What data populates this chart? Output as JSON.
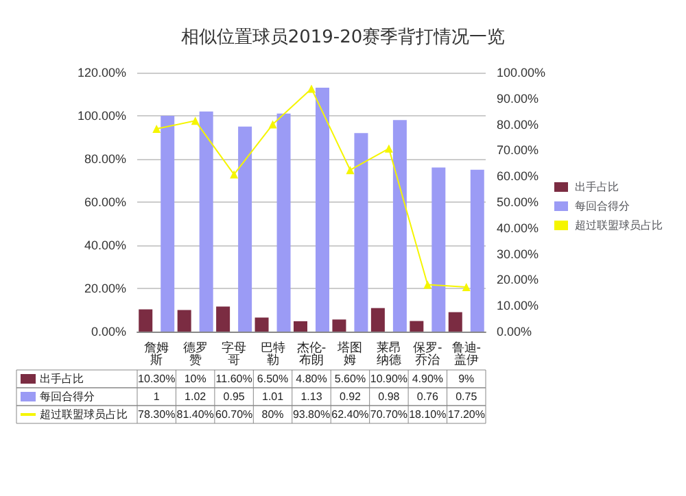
{
  "chart_data": {
    "type": "bar",
    "title": "相似位置球员2019-20赛季背打情况一览",
    "categories": [
      "詹姆斯",
      "德罗赞",
      "字母哥",
      "巴特勒",
      "杰伦-布朗",
      "塔图姆",
      "莱昂纳德",
      "保罗-乔治",
      "鲁迪-盖伊"
    ],
    "series": [
      {
        "name": "出手占比",
        "color": "#7b2c42",
        "values": [
          0.103,
          0.1,
          0.116,
          0.065,
          0.048,
          0.056,
          0.109,
          0.049,
          0.09
        ],
        "value_labels": [
          "10.30%",
          "10%",
          "11.60%",
          "6.50%",
          "4.80%",
          "5.60%",
          "10.90%",
          "4.90%",
          "9%"
        ]
      },
      {
        "name": "每回合得分",
        "color": "#9b9bf5",
        "values": [
          1,
          1.02,
          0.95,
          1.01,
          1.13,
          0.92,
          0.98,
          0.76,
          0.75
        ],
        "value_labels": [
          "1",
          "1.02",
          "0.95",
          "1.01",
          "1.13",
          "0.92",
          "0.98",
          "0.76",
          "0.75"
        ]
      },
      {
        "name": "超过联盟球员占比",
        "type": "line",
        "axis": "y2",
        "color": "#f5f500",
        "marker": "triangle",
        "values": [
          0.783,
          0.814,
          0.607,
          0.8,
          0.938,
          0.624,
          0.707,
          0.181,
          0.172
        ],
        "value_labels": [
          "78.30%",
          "81.40%",
          "60.70%",
          "80%",
          "93.80%",
          "62.40%",
          "70.70%",
          "18.10%",
          "17.20%"
        ]
      }
    ],
    "ylim": [
      0,
      1.2
    ],
    "yticks": [
      {
        "value": 0,
        "label": "0.00%"
      },
      {
        "value": 0.2,
        "label": "20.00%"
      },
      {
        "value": 0.4,
        "label": "40.00%"
      },
      {
        "value": 0.6,
        "label": "60.00%"
      },
      {
        "value": 0.8,
        "label": "80.00%"
      },
      {
        "value": 1,
        "label": "100.00%"
      },
      {
        "value": 1.2,
        "label": "120.00%"
      }
    ],
    "y2lim": [
      0,
      1
    ],
    "y2ticks": [
      {
        "value": 0,
        "label": "0.00%"
      },
      {
        "value": 0.1,
        "label": "10.00%"
      },
      {
        "value": 0.2,
        "label": "20.00%"
      },
      {
        "value": 0.3,
        "label": "30.00%"
      },
      {
        "value": 0.4,
        "label": "40.00%"
      },
      {
        "value": 0.5,
        "label": "50.00%"
      },
      {
        "value": 0.6,
        "label": "60.00%"
      },
      {
        "value": 0.7,
        "label": "70.00%"
      },
      {
        "value": 0.8,
        "label": "80.00%"
      },
      {
        "value": 0.9,
        "label": "90.00%"
      },
      {
        "value": 1,
        "label": "100.00%"
      }
    ],
    "grid": "y",
    "legend": "right"
  }
}
